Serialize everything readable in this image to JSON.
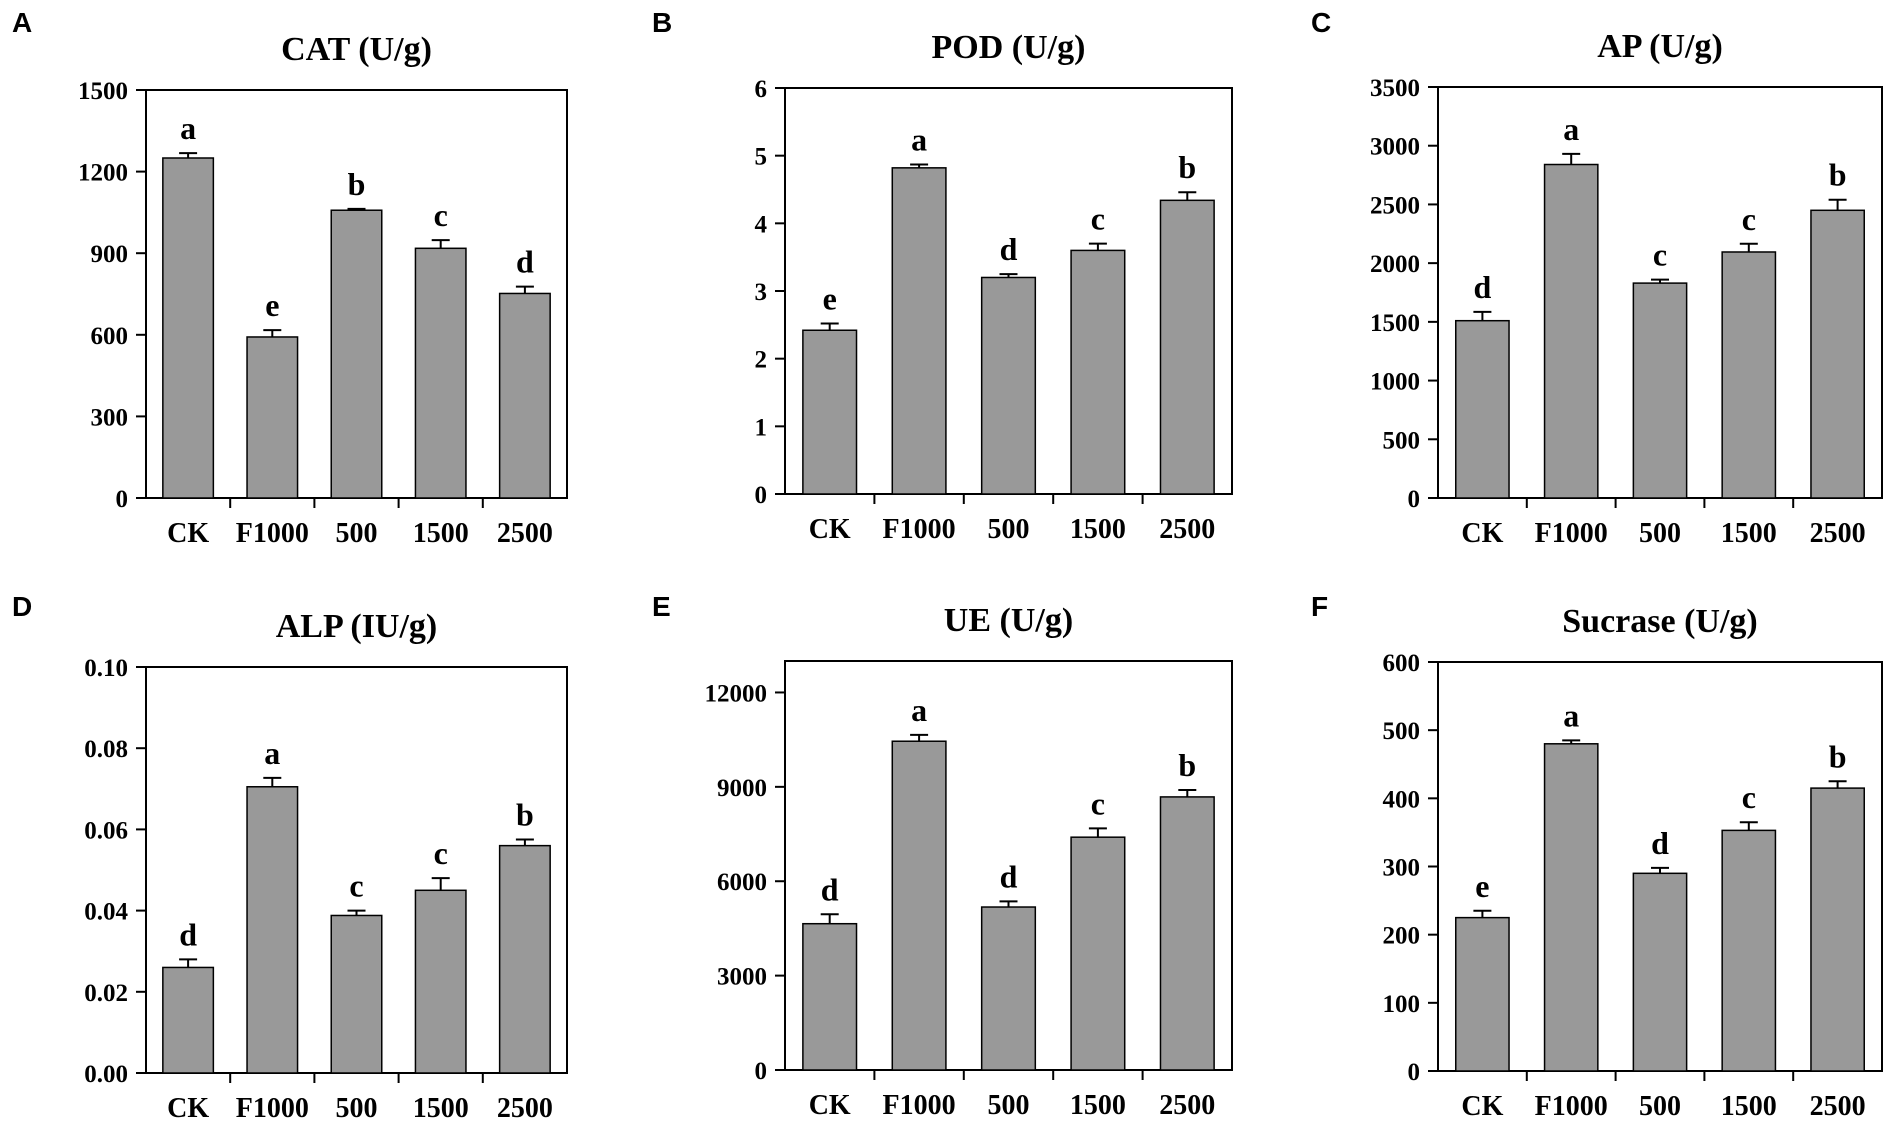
{
  "figure": {
    "bar_color": "#999999",
    "categories": [
      "CK",
      "F1000",
      "500",
      "1500",
      "2500"
    ]
  },
  "chart_data": [
    {
      "panel": "A",
      "type": "bar",
      "title": "CAT (U/g)",
      "categories": [
        "CK",
        "F1000",
        "500",
        "1500",
        "2500"
      ],
      "values": [
        1250,
        592,
        1058,
        918,
        752
      ],
      "errors": [
        18,
        25,
        5,
        30,
        25
      ],
      "significance": [
        "a",
        "e",
        "b",
        "c",
        "d"
      ],
      "ylim": [
        0,
        1500
      ],
      "yticks": [
        0,
        300,
        600,
        900,
        1200,
        1500
      ],
      "ytick_labels": [
        "0",
        "300",
        "600",
        "900",
        "1200",
        "1500"
      ]
    },
    {
      "panel": "B",
      "type": "bar",
      "title": "POD (U/g)",
      "categories": [
        "CK",
        "F1000",
        "500",
        "1500",
        "2500"
      ],
      "values": [
        2.42,
        4.82,
        3.2,
        3.6,
        4.34
      ],
      "errors": [
        0.1,
        0.05,
        0.05,
        0.1,
        0.12
      ],
      "significance": [
        "e",
        "a",
        "d",
        "c",
        "b"
      ],
      "ylim": [
        0,
        6
      ],
      "yticks": [
        0,
        1,
        2,
        3,
        4,
        5,
        6
      ],
      "ytick_labels": [
        "0",
        "1",
        "2",
        "3",
        "4",
        "5",
        "6"
      ]
    },
    {
      "panel": "C",
      "type": "bar",
      "title": "AP (U/g)",
      "categories": [
        "CK",
        "F1000",
        "500",
        "1500",
        "2500"
      ],
      "values": [
        1510,
        2840,
        1830,
        2095,
        2450
      ],
      "errors": [
        75,
        90,
        30,
        70,
        90
      ],
      "significance": [
        "d",
        "a",
        "c",
        "c",
        "b"
      ],
      "ylim": [
        0,
        3500
      ],
      "yticks": [
        0,
        500,
        1000,
        1500,
        2000,
        2500,
        3000,
        3500
      ],
      "ytick_labels": [
        "0",
        "500",
        "1000",
        "1500",
        "2000",
        "2500",
        "3000",
        "3500"
      ]
    },
    {
      "panel": "D",
      "type": "bar",
      "title": "ALP (IU/g)",
      "categories": [
        "CK",
        "F1000",
        "500",
        "1500",
        "2500"
      ],
      "values": [
        0.026,
        0.0705,
        0.0388,
        0.045,
        0.056
      ],
      "errors": [
        0.002,
        0.0022,
        0.0012,
        0.003,
        0.0015
      ],
      "significance": [
        "d",
        "a",
        "c",
        "c",
        "b"
      ],
      "ylim": [
        0,
        0.1
      ],
      "yticks": [
        0,
        0.02,
        0.04,
        0.06,
        0.08,
        0.1
      ],
      "ytick_labels": [
        "0.00",
        "0.02",
        "0.04",
        "0.06",
        "0.08",
        "0.10"
      ]
    },
    {
      "panel": "E",
      "type": "bar",
      "title": "UE (U/g)",
      "categories": [
        "CK",
        "F1000",
        "500",
        "1500",
        "2500"
      ],
      "values": [
        4650,
        10450,
        5180,
        7400,
        8680
      ],
      "errors": [
        300,
        200,
        180,
        280,
        220
      ],
      "significance": [
        "d",
        "a",
        "d",
        "c",
        "b"
      ],
      "ylim": [
        0,
        13000
      ],
      "yticks": [
        0,
        3000,
        6000,
        9000,
        12000
      ],
      "ytick_labels": [
        "0",
        "3000",
        "6000",
        "9000",
        "12000"
      ]
    },
    {
      "panel": "F",
      "type": "bar",
      "title": "Sucrase (U/g)",
      "categories": [
        "CK",
        "F1000",
        "500",
        "1500",
        "2500"
      ],
      "values": [
        225,
        480,
        290,
        353,
        415
      ],
      "errors": [
        10,
        5,
        8,
        12,
        10
      ],
      "significance": [
        "e",
        "a",
        "d",
        "c",
        "b"
      ],
      "ylim": [
        0,
        600
      ],
      "yticks": [
        0,
        100,
        200,
        300,
        400,
        500,
        600
      ],
      "ytick_labels": [
        "0",
        "100",
        "200",
        "300",
        "400",
        "500",
        "600"
      ]
    }
  ]
}
